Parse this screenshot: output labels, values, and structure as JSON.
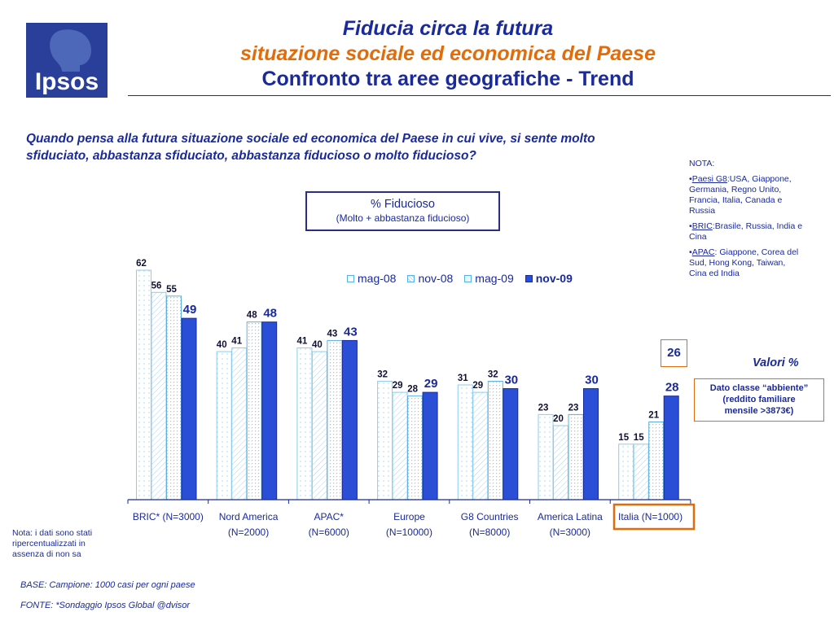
{
  "logo": {
    "text": "Ipsos"
  },
  "header": {
    "title_line1": "Fiducia circa la futura",
    "title_line2": "situazione sociale ed economica del Paese",
    "title_line3": "Confronto tra aree geografiche - Trend"
  },
  "question": "Quando pensa alla futura situazione sociale ed economica del Paese in cui vive, si sente molto sfiduciato, abbastanza sfiduciato, abbastanza fiducioso o molto fiducioso?",
  "notes": {
    "heading": "NOTA:",
    "g8_label": "Paesi G8",
    "g8_text": ":USA, Giappone, Germania, Regno Unito, Francia, Italia, Canada e Russia",
    "bric_label": "BRIC",
    "bric_text": ":Brasile, Russia, India e Cina",
    "apac_label": "APAC",
    "apac_text": ": Giappone, Corea del Sud, Hong Kong, Taiwan, Cina ed India"
  },
  "fiducioso_box": {
    "line1": "% Fiducioso",
    "line2": "(Molto + abbastanza fiducioso)"
  },
  "colors": {
    "navy": "#1a2a9a",
    "orange": "#e36c0a",
    "bar_light_border": "#5ab0e0",
    "bar_solid": "#2a4fd6"
  },
  "chart_data": {
    "type": "bar",
    "categories": [
      "BRIC* (N=3000)",
      "Nord America (N=2000)",
      "APAC* (N=6000)",
      "Europe (N=10000)",
      "G8 Countries (N=8000)",
      "America Latina (N=3000)",
      "Italia (N=1000)"
    ],
    "category_lines": [
      [
        "BRIC* (N=3000)",
        ""
      ],
      [
        "Nord America",
        "(N=2000)"
      ],
      [
        "APAC*",
        "(N=6000)"
      ],
      [
        "Europe",
        "(N=10000)"
      ],
      [
        "G8 Countries",
        "(N=8000)"
      ],
      [
        "America Latina",
        "(N=3000)"
      ],
      [
        "Italia (N=1000)",
        ""
      ]
    ],
    "series": [
      {
        "name": "mag-08",
        "values": [
          62,
          40,
          41,
          32,
          31,
          23,
          15
        ]
      },
      {
        "name": "nov-08",
        "values": [
          56,
          41,
          40,
          29,
          29,
          20,
          15
        ]
      },
      {
        "name": "mag-09",
        "values": [
          55,
          48,
          43,
          28,
          32,
          23,
          21
        ]
      },
      {
        "name": "nov-09",
        "values": [
          49,
          48,
          43,
          29,
          30,
          30,
          28
        ]
      }
    ],
    "ylim": [
      0,
      62
    ],
    "legend_position": "top-right",
    "highlight_category": "Italia (N=1000)",
    "grid": false
  },
  "annotations": {
    "box_value": "26",
    "valori": "Valori %",
    "dato_line1": "Dato classe “abbiente”",
    "dato_line2": "(reddito familiare",
    "dato_line3": "mensile >3873€)"
  },
  "footer": {
    "nota": "Nota: i dati sono stati ripercentualizzati in assenza di non sa",
    "base": "BASE: Campione: 1000 casi per ogni paese",
    "fonte": "FONTE: *Sondaggio Ipsos Global @dvisor"
  }
}
